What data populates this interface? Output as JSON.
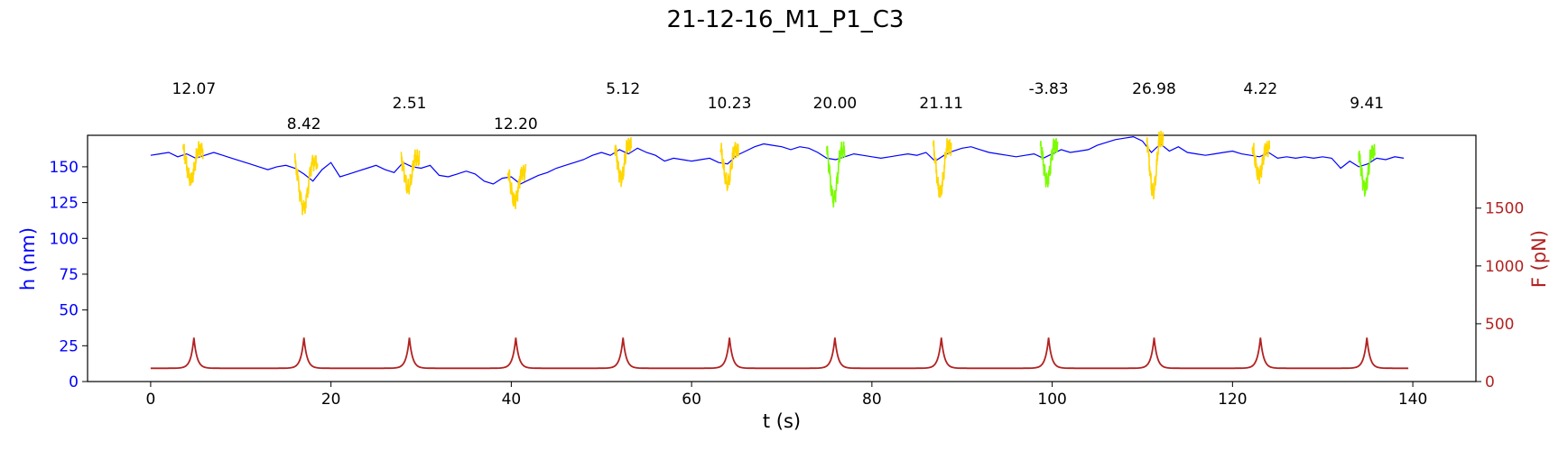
{
  "chart_data": {
    "type": "line",
    "title": "21-12-16_M1_P1_C3",
    "xlabel": "t (s)",
    "ylabel_left": "h (nm)",
    "ylabel_right": "F (pN)",
    "xlim": [
      -7,
      147
    ],
    "ylim_left": [
      0,
      172
    ],
    "ylim_right": [
      0,
      2130
    ],
    "x_ticks": [
      0,
      20,
      40,
      60,
      80,
      100,
      120,
      140
    ],
    "y_left_ticks": [
      0,
      25,
      50,
      75,
      100,
      125,
      150
    ],
    "y_right_ticks": [
      0,
      500,
      1000,
      1500
    ],
    "grid": false,
    "colors": {
      "height": "#0000ff",
      "force": "#b22222",
      "segment_yellow": "#ffd700",
      "segment_green": "#7cfc00",
      "left_axis": "#0000ff",
      "right_axis": "#b22222"
    },
    "height_series": {
      "name": "h",
      "x": [
        0,
        1,
        2,
        3,
        4,
        5,
        6,
        7,
        8,
        9,
        10,
        11,
        12,
        13,
        14,
        15,
        16,
        17,
        18,
        19,
        20,
        21,
        22,
        23,
        24,
        25,
        26,
        27,
        28,
        29,
        30,
        31,
        32,
        33,
        34,
        35,
        36,
        37,
        38,
        39,
        40,
        41,
        42,
        43,
        44,
        45,
        46,
        47,
        48,
        49,
        50,
        51,
        52,
        53,
        54,
        55,
        56,
        57,
        58,
        59,
        60,
        61,
        62,
        63,
        64,
        65,
        66,
        67,
        68,
        69,
        70,
        71,
        72,
        73,
        74,
        75,
        76,
        77,
        78,
        79,
        80,
        81,
        82,
        83,
        84,
        85,
        86,
        87,
        88,
        89,
        90,
        91,
        92,
        93,
        94,
        95,
        96,
        97,
        98,
        99,
        100,
        101,
        102,
        103,
        104,
        105,
        106,
        107,
        108,
        109,
        110,
        111,
        112,
        113,
        114,
        115,
        116,
        117,
        118,
        119,
        120,
        121,
        122,
        123,
        124,
        125,
        126,
        127,
        128,
        129,
        130,
        131,
        132,
        133,
        134,
        135,
        136,
        137,
        138,
        139
      ],
      "values": [
        158,
        159,
        160,
        157,
        159,
        156,
        158,
        160,
        158,
        156,
        154,
        152,
        150,
        148,
        150,
        151,
        149,
        145,
        140,
        148,
        153,
        143,
        145,
        147,
        149,
        151,
        148,
        146,
        153,
        150,
        149,
        151,
        144,
        143,
        145,
        147,
        145,
        140,
        138,
        142,
        143,
        138,
        141,
        144,
        146,
        149,
        151,
        153,
        155,
        158,
        160,
        158,
        162,
        159,
        163,
        160,
        158,
        154,
        156,
        155,
        154,
        155,
        156,
        153,
        152,
        158,
        161,
        164,
        166,
        165,
        164,
        162,
        164,
        163,
        160,
        156,
        155,
        157,
        159,
        158,
        157,
        156,
        157,
        158,
        159,
        158,
        160,
        154,
        158,
        161,
        163,
        164,
        162,
        160,
        159,
        158,
        157,
        158,
        159,
        156,
        159,
        162,
        160,
        161,
        162,
        165,
        167,
        169,
        170,
        171,
        168,
        160,
        166,
        161,
        164,
        160,
        159,
        158,
        159,
        160,
        161,
        159,
        158,
        157,
        160,
        156,
        157,
        156,
        157,
        156,
        157,
        156,
        149,
        154,
        150,
        152,
        156,
        155,
        157,
        156
      ]
    },
    "force_series": {
      "name": "F",
      "peak_times": [
        4.8,
        17.0,
        28.7,
        40.5,
        52.4,
        64.2,
        75.9,
        87.7,
        99.6,
        111.3,
        123.1,
        134.9
      ],
      "peak_value": 380,
      "baseline": 115,
      "x_start": 0,
      "x_end": 139.5
    },
    "segments": [
      {
        "t_start": 3.6,
        "t_end": 5.8,
        "color": "yellow",
        "min": 140
      },
      {
        "t_start": 16.0,
        "t_end": 18.5,
        "color": "yellow",
        "min": 122
      },
      {
        "t_start": 27.8,
        "t_end": 29.8,
        "color": "yellow",
        "min": 135
      },
      {
        "t_start": 39.6,
        "t_end": 41.6,
        "color": "yellow",
        "min": 126
      },
      {
        "t_start": 51.5,
        "t_end": 53.3,
        "color": "yellow",
        "min": 142
      },
      {
        "t_start": 63.2,
        "t_end": 65.2,
        "color": "yellow",
        "min": 138
      },
      {
        "t_start": 75.0,
        "t_end": 77.0,
        "color": "green",
        "min": 128
      },
      {
        "t_start": 86.8,
        "t_end": 88.8,
        "color": "yellow",
        "min": 131
      },
      {
        "t_start": 98.7,
        "t_end": 100.6,
        "color": "green",
        "min": 141
      },
      {
        "t_start": 110.5,
        "t_end": 112.3,
        "color": "yellow",
        "min": 132
      },
      {
        "t_start": 122.2,
        "t_end": 124.1,
        "color": "yellow",
        "min": 144
      },
      {
        "t_start": 134.0,
        "t_end": 135.8,
        "color": "green",
        "min": 135
      }
    ],
    "annotations": [
      {
        "text": "12.07",
        "x": 4.8,
        "level": "high"
      },
      {
        "text": "8.42",
        "x": 17.0,
        "level": "low"
      },
      {
        "text": "2.51",
        "x": 28.7,
        "level": "mid"
      },
      {
        "text": "12.20",
        "x": 40.5,
        "level": "low"
      },
      {
        "text": "5.12",
        "x": 52.4,
        "level": "high"
      },
      {
        "text": "10.23",
        "x": 64.2,
        "level": "mid"
      },
      {
        "text": "20.00",
        "x": 75.9,
        "level": "mid"
      },
      {
        "text": "21.11",
        "x": 87.7,
        "level": "mid"
      },
      {
        "text": "-3.83",
        "x": 99.6,
        "level": "high"
      },
      {
        "text": "26.98",
        "x": 111.3,
        "level": "high"
      },
      {
        "text": "4.22",
        "x": 123.1,
        "level": "high"
      },
      {
        "text": "9.41",
        "x": 134.9,
        "level": "mid"
      }
    ]
  }
}
